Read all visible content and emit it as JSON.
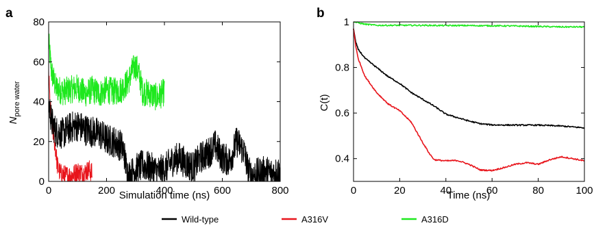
{
  "figure": {
    "legend": [
      {
        "name": "Wild-type",
        "color": "#000000"
      },
      {
        "name": "A316V",
        "color": "#e8141b"
      },
      {
        "name": "A316D",
        "color": "#1ee81e"
      }
    ]
  },
  "chart_data": [
    {
      "panel_label": "a",
      "type": "line",
      "xlabel": "Simulation time (ns)",
      "ylabel_main": "N",
      "ylabel_sub": "pore water",
      "xlim": [
        0,
        800
      ],
      "ylim": [
        0,
        80
      ],
      "xticks": [
        0,
        200,
        400,
        600,
        800
      ],
      "yticks": [
        0,
        20,
        40,
        60,
        80
      ],
      "series": [
        {
          "name": "A316D",
          "color": "#1ee81e",
          "x": [
            0,
            10,
            25,
            50,
            75,
            100,
            125,
            150,
            175,
            200,
            225,
            250,
            275,
            290,
            300,
            310,
            325,
            350,
            375,
            400
          ],
          "y": [
            70,
            55,
            47,
            45,
            46,
            47,
            44,
            46,
            44,
            46,
            45,
            46,
            50,
            56,
            58,
            55,
            45,
            44,
            42,
            45
          ],
          "noise": 7
        },
        {
          "name": "A316V",
          "color": "#e8141b",
          "x": [
            0,
            5,
            10,
            15,
            20,
            25,
            30,
            40,
            60,
            80,
            100,
            120,
            140,
            150
          ],
          "y": [
            55,
            38,
            30,
            25,
            20,
            15,
            8,
            4,
            3,
            3,
            5,
            4,
            6,
            4
          ],
          "noise": 5
        },
        {
          "name": "Wild-type",
          "color": "#000000",
          "x": [
            0,
            10,
            25,
            50,
            75,
            100,
            125,
            150,
            175,
            200,
            225,
            250,
            260,
            270,
            280,
            300,
            325,
            350,
            375,
            400,
            425,
            450,
            475,
            500,
            525,
            550,
            575,
            600,
            625,
            650,
            675,
            690,
            700,
            725,
            750,
            775,
            800
          ],
          "y": [
            40,
            30,
            25,
            24,
            27,
            28,
            26,
            25,
            24,
            21,
            20,
            18,
            15,
            5,
            3,
            6,
            8,
            7,
            5,
            6,
            10,
            12,
            9,
            7,
            12,
            14,
            18,
            12,
            10,
            20,
            15,
            5,
            3,
            4,
            5,
            4,
            5
          ],
          "noise": 8
        }
      ]
    },
    {
      "panel_label": "b",
      "type": "line",
      "xlabel": "Time (ns)",
      "ylabel": "C(t)",
      "xlim": [
        0,
        100
      ],
      "ylim": [
        0.3,
        1.0
      ],
      "xticks": [
        0,
        20,
        40,
        60,
        80,
        100
      ],
      "yticks": [
        0.4,
        0.6,
        0.8,
        1.0
      ],
      "ytick_labels": [
        "0.4",
        "0.6",
        "0.8",
        "1"
      ],
      "series": [
        {
          "name": "A316D",
          "color": "#1ee81e",
          "x": [
            0,
            5,
            10,
            20,
            30,
            40,
            50,
            60,
            70,
            80,
            90,
            100
          ],
          "y": [
            1.0,
            0.99,
            0.985,
            0.985,
            0.985,
            0.984,
            0.984,
            0.983,
            0.982,
            0.98,
            0.978,
            0.978
          ]
        },
        {
          "name": "Wild-type",
          "color": "#000000",
          "x": [
            0,
            1,
            2,
            5,
            10,
            15,
            20,
            25,
            30,
            35,
            40,
            45,
            50,
            55,
            60,
            70,
            80,
            90,
            100
          ],
          "y": [
            0.97,
            0.91,
            0.88,
            0.84,
            0.8,
            0.76,
            0.73,
            0.69,
            0.66,
            0.63,
            0.595,
            0.58,
            0.565,
            0.553,
            0.548,
            0.547,
            0.547,
            0.543,
            0.535
          ]
        },
        {
          "name": "A316V",
          "color": "#e8141b",
          "x": [
            0,
            1,
            2,
            5,
            10,
            15,
            20,
            25,
            30,
            33,
            35,
            40,
            45,
            50,
            55,
            60,
            65,
            70,
            75,
            80,
            85,
            90,
            95,
            100
          ],
          "y": [
            0.97,
            0.89,
            0.84,
            0.76,
            0.69,
            0.64,
            0.61,
            0.56,
            0.47,
            0.42,
            0.395,
            0.39,
            0.392,
            0.375,
            0.35,
            0.348,
            0.36,
            0.375,
            0.382,
            0.375,
            0.395,
            0.408,
            0.4,
            0.39
          ]
        }
      ]
    }
  ]
}
